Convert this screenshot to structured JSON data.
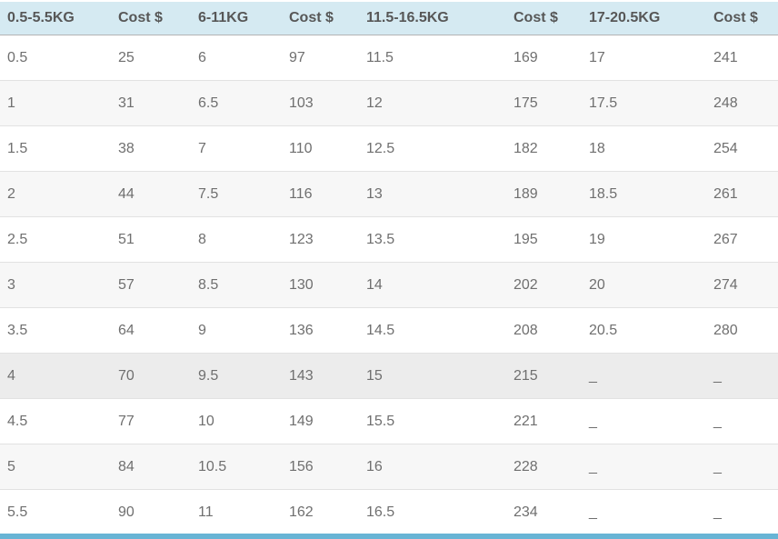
{
  "table": {
    "title": "shipping-weight-cost-table",
    "headers": [
      "0.5-5.5KG",
      "Cost $",
      "6-11KG",
      "Cost $",
      "11.5-16.5KG",
      "Cost $",
      "17-20.5KG",
      "Cost $"
    ],
    "rows": [
      [
        "0.5",
        "25",
        "6",
        "97",
        "11.5",
        "169",
        "17",
        "241"
      ],
      [
        "1",
        "31",
        "6.5",
        "103",
        "12",
        "175",
        "17.5",
        "248"
      ],
      [
        "1.5",
        "38",
        "7",
        "110",
        "12.5",
        "182",
        "18",
        "254"
      ],
      [
        "2",
        "44",
        "7.5",
        "116",
        "13",
        "189",
        "18.5",
        "261"
      ],
      [
        "2.5",
        "51",
        "8",
        "123",
        "13.5",
        "195",
        "19",
        "267"
      ],
      [
        "3",
        "57",
        "8.5",
        "130",
        "14",
        "202",
        "20",
        "274"
      ],
      [
        "3.5",
        "64",
        "9",
        "136",
        "14.5",
        "208",
        "20.5",
        "280"
      ],
      [
        "4",
        "70",
        "9.5",
        "143",
        "15",
        "215",
        "_",
        "_"
      ],
      [
        "4.5",
        "77",
        "10",
        "149",
        "15.5",
        "221",
        "_",
        "_"
      ],
      [
        "5",
        "84",
        "10.5",
        "156",
        "16",
        "228",
        "_",
        "_"
      ],
      [
        "5.5",
        "90",
        "11",
        "162",
        "16.5",
        "234",
        "_",
        "_"
      ]
    ],
    "empty_placeholder": "_"
  },
  "state": {
    "highlighted_row": 7
  },
  "colors": {
    "header_bg": "#d5eaf2",
    "header_text": "#575757",
    "body_text": "#6f6f6f",
    "row_bg": "#ffffff",
    "row_alt_bg": "#f7f7f7",
    "row_highlight_bg": "#ececec",
    "row_divider": "#e2e2e2",
    "header_divider": "#b3b3b3",
    "bottom_bar": "#68b4d5"
  }
}
